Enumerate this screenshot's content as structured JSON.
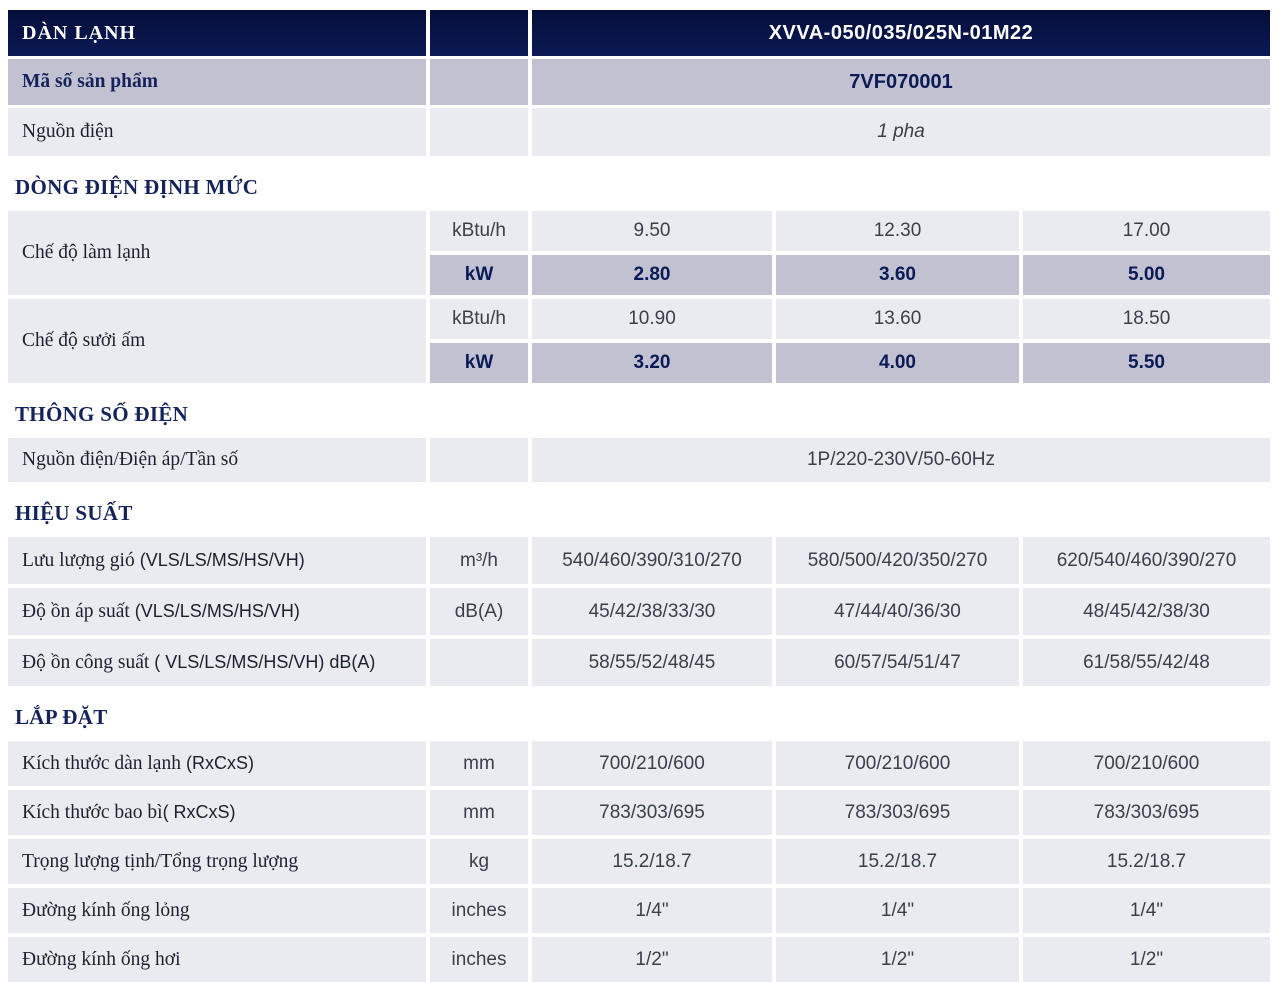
{
  "colors": {
    "header_navy": "#0b1a55",
    "lavender": "#c2c1d1",
    "row_light": "#e9ebf1",
    "title_navy": "#14245a",
    "value_text": "#3a3f48",
    "bold_value_navy": "#0a1a55"
  },
  "product": {
    "section_label": "DÀN LẠNH",
    "model": "XVVA-050/035/025N-01M22",
    "code_label": "Mã số sản phẩm",
    "code_value": "7VF070001",
    "power_label": "Nguồn điện",
    "power_value": "1 pha"
  },
  "rated": {
    "title": "DÒNG ĐIỆN ĐỊNH MỨC",
    "cooling": {
      "label": "Chế độ làm lạnh",
      "btu_unit": "kBtu/h",
      "btu": [
        "9.50",
        "12.30",
        "17.00"
      ],
      "kw_unit": "kW",
      "kw": [
        "2.80",
        "3.60",
        "5.00"
      ]
    },
    "heating": {
      "label": "Chế độ sưởi ấm",
      "btu_unit": "kBtu/h",
      "btu": [
        "10.90",
        "13.60",
        "18.50"
      ],
      "kw_unit": "kW",
      "kw": [
        "3.20",
        "4.00",
        "5.50"
      ]
    }
  },
  "electrical": {
    "title": "THÔNG SỐ ĐIỆN",
    "label": "Nguồn điện/Điện áp/Tần số",
    "value": "1P/220-230V/50-60Hz"
  },
  "performance": {
    "title": "HIỆU SUẤT",
    "rows": [
      {
        "label": "Lưu lượng gió",
        "label_suffix": " (VLS/LS/MS/HS/VH)",
        "unit": "m³/h",
        "values": [
          "540/460/390/310/270",
          "580/500/420/350/270",
          "620/540/460/390/270"
        ]
      },
      {
        "label": "Độ ồn áp suất",
        "label_suffix": " (VLS/LS/MS/HS/VH)",
        "unit": "dB(A)",
        "values": [
          "45/42/38/33/30",
          "47/44/40/36/30",
          "48/45/42/38/30"
        ]
      },
      {
        "label": "Độ ồn công suất",
        "label_suffix": " ( VLS/LS/MS/HS/VH) dB(A)",
        "unit": "",
        "values": [
          "58/55/52/48/45",
          "60/57/54/51/47",
          "61/58/55/42/48"
        ]
      }
    ]
  },
  "installation": {
    "title": "LẮP ĐẶT",
    "rows": [
      {
        "label": "Kích thước dàn lạnh",
        "label_suffix": " (RxCxS)",
        "unit": "mm",
        "values": [
          "700/210/600",
          "700/210/600",
          "700/210/600"
        ]
      },
      {
        "label": "Kích thước bao bì",
        "label_suffix": "( RxCxS)",
        "unit": "mm",
        "values": [
          "783/303/695",
          "783/303/695",
          "783/303/695"
        ]
      },
      {
        "label": "Trọng lượng tịnh/Tổng trọng lượng",
        "label_suffix": "",
        "unit": "kg",
        "values": [
          "15.2/18.7",
          "15.2/18.7",
          "15.2/18.7"
        ]
      },
      {
        "label": "Đường kính ống lỏng",
        "label_suffix": "",
        "unit": "inches",
        "values": [
          "1/4\"",
          "1/4\"",
          "1/4\""
        ]
      },
      {
        "label": "Đường kính ống hơi",
        "label_suffix": "",
        "unit": "inches",
        "values": [
          "1/2\"",
          "1/2\"",
          "1/2\""
        ]
      }
    ]
  }
}
